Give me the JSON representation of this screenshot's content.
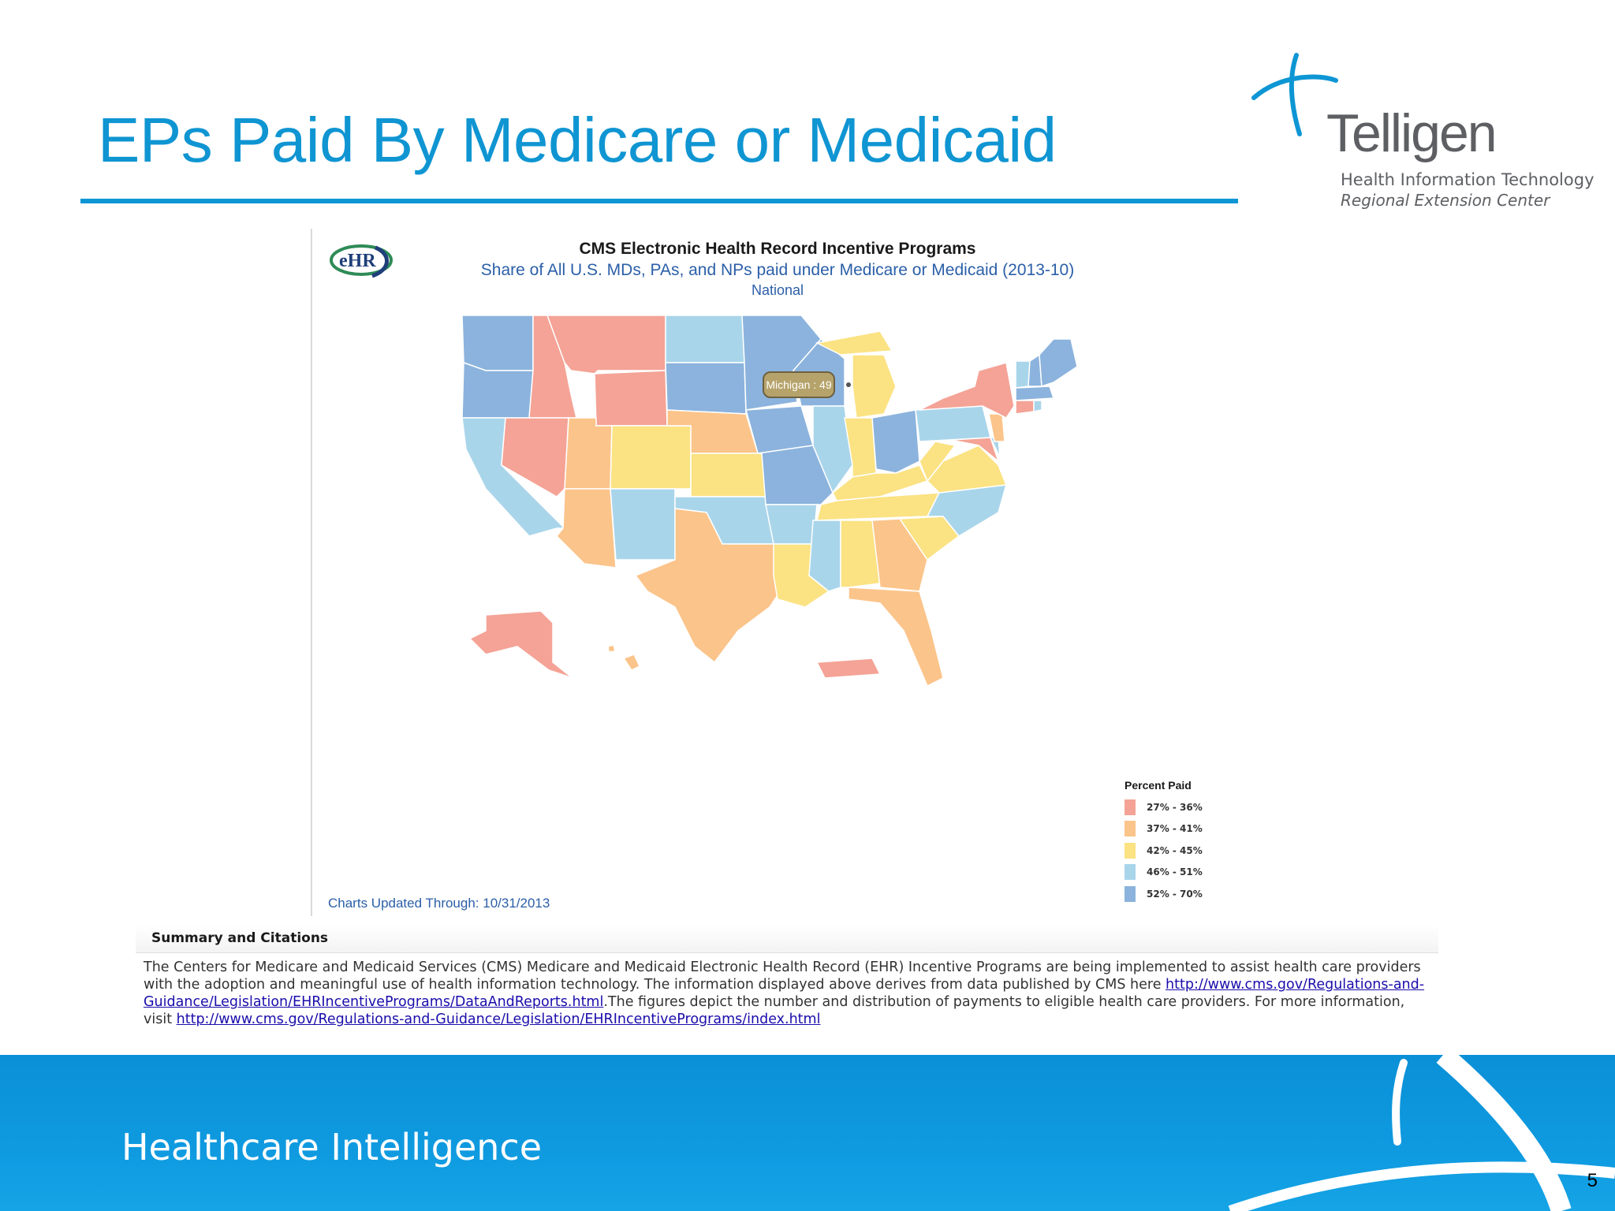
{
  "slide": {
    "title": "EPs Paid By Medicare or Medicaid",
    "page_number": "5",
    "footer_text": "Healthcare Intelligence"
  },
  "logo": {
    "name": "Telligen",
    "line1": "Health Information Technology",
    "line2": "Regional Extension Center"
  },
  "chart": {
    "title": "CMS Electronic Health Record Incentive Programs",
    "subtitle": "Share of All U.S. MDs, PAs, and NPs paid under Medicare or Medicaid (2013-10)",
    "scope": "National",
    "tooltip": "Michigan : 49",
    "updated": "Charts Updated Through: 10/31/2013",
    "ehr_logo_text": "eHR",
    "legend": {
      "title": "Percent Paid",
      "items": [
        {
          "label": "27% - 36%",
          "color": "#f4a396"
        },
        {
          "label": "37% - 41%",
          "color": "#fbc48a"
        },
        {
          "label": "42% - 45%",
          "color": "#fbe283"
        },
        {
          "label": "46% - 51%",
          "color": "#a9d5ea"
        },
        {
          "label": "52% - 70%",
          "color": "#8bb3dd"
        }
      ]
    }
  },
  "chart_data": {
    "type": "choropleth",
    "title": "CMS Electronic Health Record Incentive Programs",
    "subtitle": "Share of All U.S. MDs, PAs, and NPs paid under Medicare or Medicaid (2013-10)",
    "legend_title": "Percent Paid",
    "bins": [
      "27% - 36%",
      "37% - 41%",
      "42% - 45%",
      "46% - 51%",
      "52% - 70%"
    ],
    "values": [
      {
        "state": "Michigan",
        "value": 49
      }
    ]
  },
  "summary": {
    "title": "Summary and  Citations",
    "text1": "The Centers for Medicare and Medicaid Services (CMS) Medicare and Medicaid Electronic Health Record (EHR) Incentive Programs are being implemented to assist health care providers with the adoption and meaningful use of health information technology. The information displayed above derives from data published by CMS here ",
    "link1": "http://www.cms.gov/Regulations-and-Guidance/Legislation/EHRIncentivePrograms/DataAndReports.html",
    "text2": ".The figures depict the number and distribution of payments to eligible health care providers. For more information, visit ",
    "link2": "http://www.cms.gov/Regulations-and-Guidance/Legislation/EHRIncentivePrograms/index.html"
  }
}
